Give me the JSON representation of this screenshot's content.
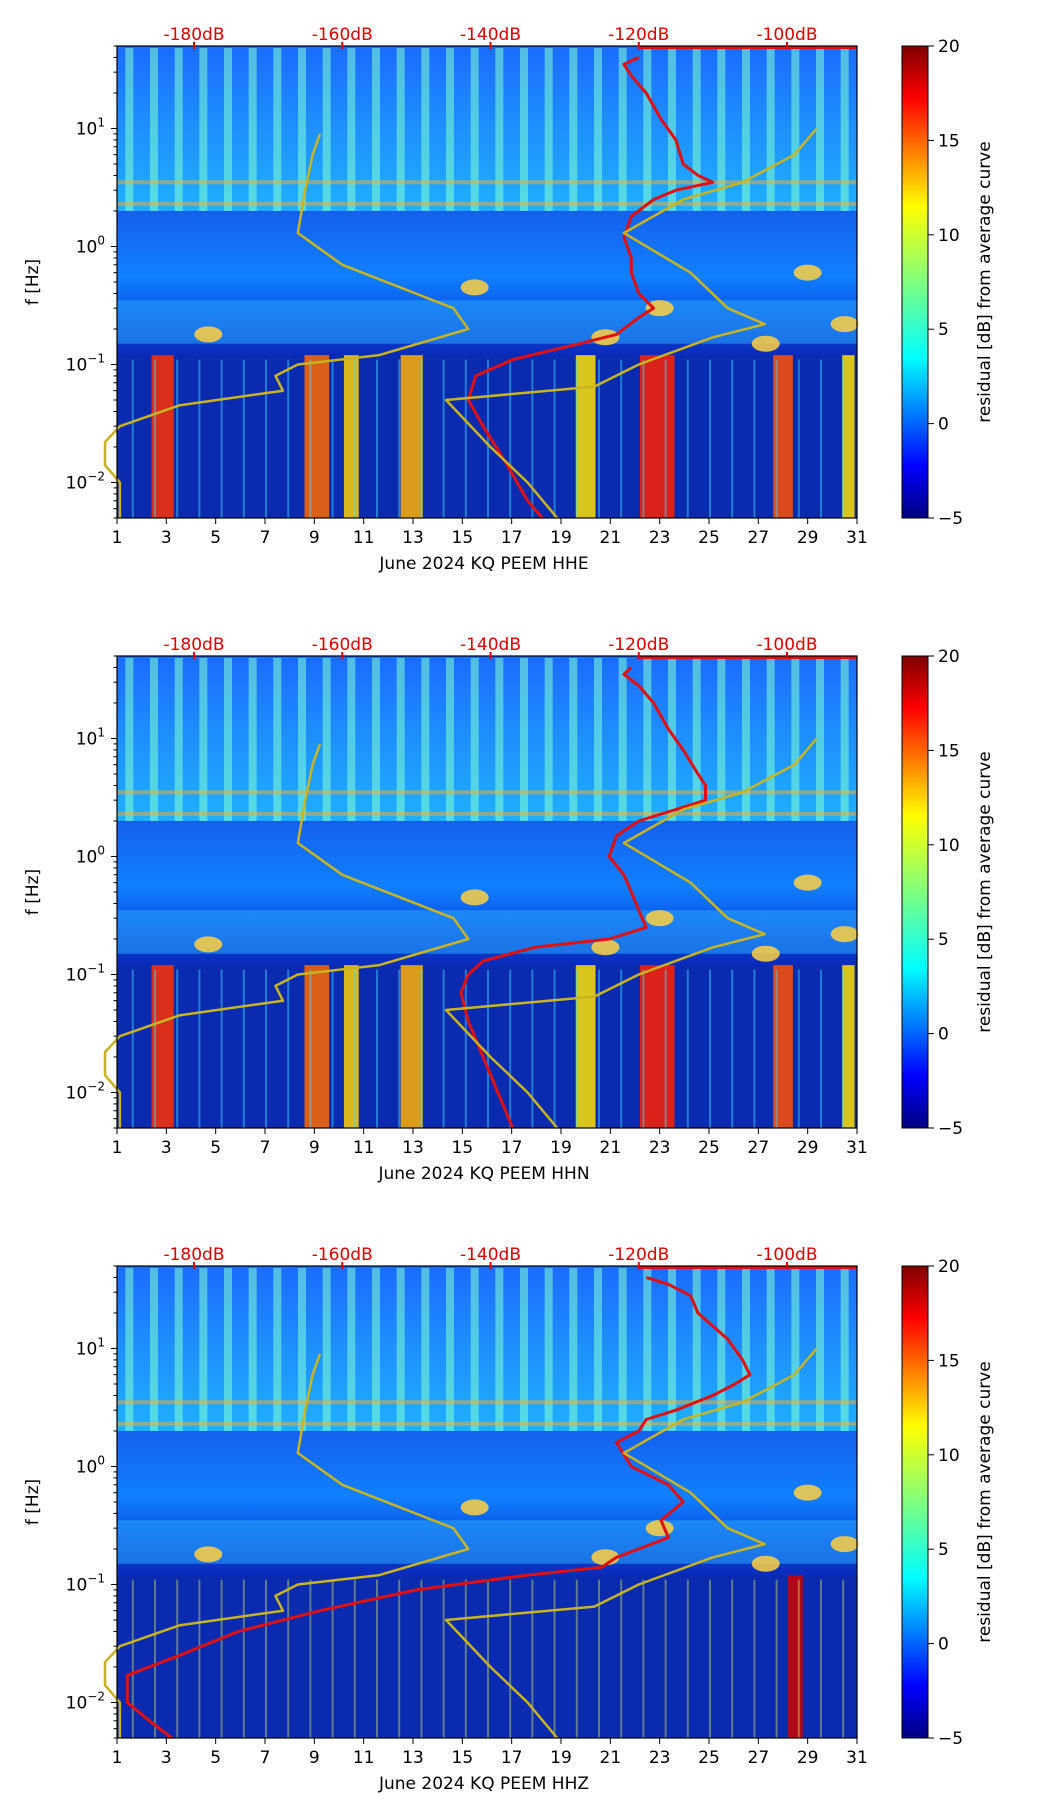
{
  "colorbar": {
    "label": "residual [dB] from average curve",
    "ticks": [
      "20",
      "15",
      "10",
      "5",
      "0",
      "−5"
    ],
    "colors": [
      "#00007f",
      "#0000ff",
      "#007fff",
      "#00ffff",
      "#7fff7f",
      "#ffff00",
      "#ff7f00",
      "#ff0000",
      "#7f0000"
    ]
  },
  "y_axis": {
    "label": "f [Hz]",
    "ticks": [
      {
        "base": "10",
        "exp": "1"
      },
      {
        "base": "10",
        "exp": "0"
      },
      {
        "base": "10",
        "exp": "−1"
      },
      {
        "base": "10",
        "exp": "−2"
      }
    ]
  },
  "x_ticks": [
    "1",
    "3",
    "5",
    "7",
    "9",
    "11",
    "13",
    "15",
    "17",
    "19",
    "21",
    "23",
    "25",
    "27",
    "29",
    "31"
  ],
  "db_ticks": [
    "-180dB",
    "-160dB",
    "-140dB",
    "-120dB",
    "-100dB"
  ],
  "panels": [
    {
      "xlabel": "June 2024 KQ PEEM  HHE"
    },
    {
      "xlabel": "June 2024 KQ PEEM  HHN"
    },
    {
      "xlabel": "June 2024 KQ PEEM  HHZ"
    }
  ],
  "chart_data": [
    {
      "type": "heatmap",
      "title": "",
      "xlabel": "June 2024 KQ PEEM  HHE",
      "ylabel": "f [Hz]",
      "xlim": [
        1,
        31
      ],
      "ylim": [
        0.005,
        50
      ],
      "yscale": "log",
      "colorbar_range": [
        -5,
        20
      ],
      "colorbar_label": "residual [dB] from average curve",
      "secondary_x_ticks_dB": [
        -180,
        -160,
        -140,
        -120,
        -100
      ],
      "series": [
        {
          "name": "average PSD (dB, red)",
          "color": "#e01010",
          "points": [
            [
              -120,
              40
            ],
            [
              -122,
              35
            ],
            [
              -121,
              28
            ],
            [
              -119,
              20
            ],
            [
              -117,
              12
            ],
            [
              -115,
              8
            ],
            [
              -114,
              5
            ],
            [
              -112,
              4
            ],
            [
              -110,
              3.5
            ],
            [
              -115,
              3
            ],
            [
              -118,
              2.5
            ],
            [
              -121,
              1.8
            ],
            [
              -122,
              1.2
            ],
            [
              -121,
              0.8
            ],
            [
              -121,
              0.6
            ],
            [
              -120,
              0.4
            ],
            [
              -118,
              0.3
            ],
            [
              -120,
              0.25
            ],
            [
              -123,
              0.18
            ],
            [
              -128,
              0.15
            ],
            [
              -137,
              0.11
            ],
            [
              -142,
              0.08
            ],
            [
              -143,
              0.05
            ],
            [
              -141,
              0.03
            ],
            [
              -138,
              0.015
            ],
            [
              -135,
              0.007
            ],
            [
              -133,
              0.005
            ]
          ]
        },
        {
          "name": "noise model (dB, olive)",
          "color": "#c8b420",
          "points": [
            [
              -190,
              0.005
            ],
            [
              -190,
              0.01
            ],
            [
              -192,
              0.014
            ],
            [
              -192,
              0.022
            ],
            [
              -190,
              0.03
            ],
            [
              -182,
              0.045
            ],
            [
              -168,
              0.06
            ],
            [
              -169,
              0.08
            ],
            [
              -166,
              0.1
            ],
            [
              -155,
              0.12
            ],
            [
              -143,
              0.2
            ],
            [
              -145,
              0.3
            ],
            [
              -160,
              0.7
            ],
            [
              -166,
              1.3
            ],
            [
              -165,
              3
            ],
            [
              -164,
              6
            ],
            [
              -163,
              9
            ]
          ]
        },
        {
          "name": "noise model 2 (dB, olive)",
          "color": "#c8b420",
          "points": [
            [
              -131,
              0.005
            ],
            [
              -135,
              0.01
            ],
            [
              -140,
              0.02
            ],
            [
              -146,
              0.05
            ],
            [
              -126,
              0.065
            ],
            [
              -120,
              0.1
            ],
            [
              -110,
              0.17
            ],
            [
              -103,
              0.22
            ],
            [
              -108,
              0.3
            ],
            [
              -113,
              0.6
            ],
            [
              -122,
              1.3
            ],
            [
              -114,
              2.5
            ],
            [
              -106,
              3.5
            ],
            [
              -99,
              6
            ],
            [
              -96,
              10
            ]
          ]
        }
      ]
    },
    {
      "type": "heatmap",
      "title": "",
      "xlabel": "June 2024 KQ PEEM  HHN",
      "ylabel": "f [Hz]",
      "xlim": [
        1,
        31
      ],
      "ylim": [
        0.005,
        50
      ],
      "yscale": "log",
      "colorbar_range": [
        -5,
        20
      ],
      "colorbar_label": "residual [dB] from average curve",
      "secondary_x_ticks_dB": [
        -180,
        -160,
        -140,
        -120,
        -100
      ],
      "series": [
        {
          "name": "average PSD (dB, red)",
          "color": "#e01010",
          "points": [
            [
              -121,
              40
            ],
            [
              -122,
              35
            ],
            [
              -120,
              28
            ],
            [
              -118,
              20
            ],
            [
              -116,
              12
            ],
            [
              -114,
              8
            ],
            [
              -112,
              5
            ],
            [
              -111,
              4
            ],
            [
              -111,
              3
            ],
            [
              -115,
              2.5
            ],
            [
              -120,
              2
            ],
            [
              -123,
              1.5
            ],
            [
              -124,
              1
            ],
            [
              -122,
              0.7
            ],
            [
              -121,
              0.5
            ],
            [
              -120,
              0.35
            ],
            [
              -119,
              0.25
            ],
            [
              -124,
              0.2
            ],
            [
              -134,
              0.17
            ],
            [
              -141,
              0.13
            ],
            [
              -143,
              0.1
            ],
            [
              -144,
              0.07
            ],
            [
              -143,
              0.04
            ],
            [
              -141,
              0.02
            ],
            [
              -139,
              0.01
            ],
            [
              -137,
              0.005
            ]
          ]
        },
        {
          "name": "noise model (dB, olive)",
          "color": "#c8b420",
          "points": [
            [
              -190,
              0.005
            ],
            [
              -190,
              0.01
            ],
            [
              -192,
              0.014
            ],
            [
              -192,
              0.022
            ],
            [
              -190,
              0.03
            ],
            [
              -182,
              0.045
            ],
            [
              -168,
              0.06
            ],
            [
              -169,
              0.08
            ],
            [
              -166,
              0.1
            ],
            [
              -155,
              0.12
            ],
            [
              -143,
              0.2
            ],
            [
              -145,
              0.3
            ],
            [
              -160,
              0.7
            ],
            [
              -166,
              1.3
            ],
            [
              -165,
              3
            ],
            [
              -164,
              6
            ],
            [
              -163,
              9
            ]
          ]
        },
        {
          "name": "noise model 2 (dB, olive)",
          "color": "#c8b420",
          "points": [
            [
              -131,
              0.005
            ],
            [
              -135,
              0.01
            ],
            [
              -140,
              0.02
            ],
            [
              -146,
              0.05
            ],
            [
              -126,
              0.065
            ],
            [
              -120,
              0.1
            ],
            [
              -110,
              0.17
            ],
            [
              -103,
              0.22
            ],
            [
              -108,
              0.3
            ],
            [
              -113,
              0.6
            ],
            [
              -122,
              1.3
            ],
            [
              -114,
              2.5
            ],
            [
              -106,
              3.5
            ],
            [
              -99,
              6
            ],
            [
              -96,
              10
            ]
          ]
        }
      ]
    },
    {
      "type": "heatmap",
      "title": "",
      "xlabel": "June 2024 KQ PEEM  HHZ",
      "ylabel": "f [Hz]",
      "xlim": [
        1,
        31
      ],
      "ylim": [
        0.005,
        50
      ],
      "yscale": "log",
      "colorbar_range": [
        -5,
        20
      ],
      "colorbar_label": "residual [dB] from average curve",
      "secondary_x_ticks_dB": [
        -180,
        -160,
        -140,
        -120,
        -100
      ],
      "series": [
        {
          "name": "average PSD (dB, red)",
          "color": "#e01010",
          "points": [
            [
              -119,
              40
            ],
            [
              -116,
              35
            ],
            [
              -113,
              28
            ],
            [
              -112,
              20
            ],
            [
              -108,
              12
            ],
            [
              -106,
              8
            ],
            [
              -105,
              6
            ],
            [
              -107,
              5
            ],
            [
              -110,
              4
            ],
            [
              -115,
              3
            ],
            [
              -119,
              2.5
            ],
            [
              -120,
              2
            ],
            [
              -123,
              1.6
            ],
            [
              -121,
              1
            ],
            [
              -116,
              0.7
            ],
            [
              -114,
              0.5
            ],
            [
              -117,
              0.35
            ],
            [
              -116,
              0.25
            ],
            [
              -120,
              0.2
            ],
            [
              -123,
              0.17
            ],
            [
              -125,
              0.14
            ],
            [
              -135,
              0.12
            ],
            [
              -150,
              0.09
            ],
            [
              -163,
              0.06
            ],
            [
              -174,
              0.04
            ],
            [
              -182,
              0.025
            ],
            [
              -189,
              0.017
            ],
            [
              -189,
              0.01
            ],
            [
              -186,
              0.007
            ],
            [
              -183,
              0.005
            ]
          ]
        },
        {
          "name": "noise model (dB, olive)",
          "color": "#c8b420",
          "points": [
            [
              -190,
              0.005
            ],
            [
              -190,
              0.01
            ],
            [
              -192,
              0.014
            ],
            [
              -192,
              0.022
            ],
            [
              -190,
              0.03
            ],
            [
              -182,
              0.045
            ],
            [
              -168,
              0.06
            ],
            [
              -169,
              0.08
            ],
            [
              -166,
              0.1
            ],
            [
              -155,
              0.12
            ],
            [
              -143,
              0.2
            ],
            [
              -145,
              0.3
            ],
            [
              -160,
              0.7
            ],
            [
              -166,
              1.3
            ],
            [
              -165,
              3
            ],
            [
              -164,
              6
            ],
            [
              -163,
              9
            ]
          ]
        },
        {
          "name": "noise model 2 (dB, olive)",
          "color": "#c8b420",
          "points": [
            [
              -131,
              0.005
            ],
            [
              -135,
              0.01
            ],
            [
              -140,
              0.02
            ],
            [
              -146,
              0.05
            ],
            [
              -126,
              0.065
            ],
            [
              -120,
              0.1
            ],
            [
              -110,
              0.17
            ],
            [
              -103,
              0.22
            ],
            [
              -108,
              0.3
            ],
            [
              -113,
              0.6
            ],
            [
              -122,
              1.3
            ],
            [
              -114,
              2.5
            ],
            [
              -106,
              3.5
            ],
            [
              -99,
              6
            ],
            [
              -96,
              10
            ]
          ]
        }
      ]
    }
  ]
}
